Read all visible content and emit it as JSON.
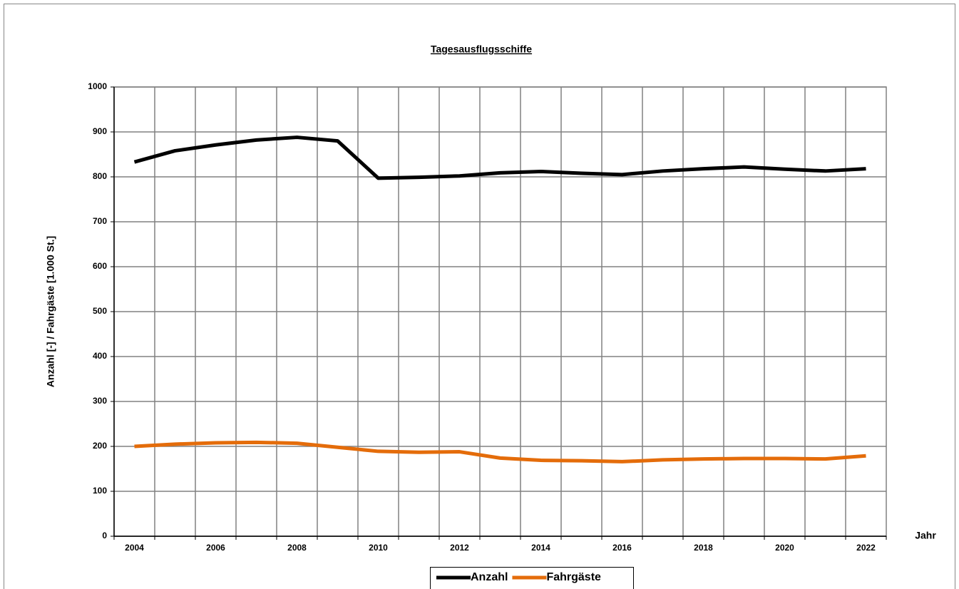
{
  "chart_data": {
    "type": "line",
    "title": "Tagesausflugsschiffe",
    "x_label": "Jahr",
    "y_label": "Anzahl [-] / Fahrgäste [1.000 St.]",
    "categories": [
      "2004",
      null,
      "2006",
      null,
      "2008",
      null,
      "2010",
      null,
      "2012",
      null,
      "2014",
      null,
      "2016",
      null,
      "2018",
      null,
      "2020",
      null,
      "2022"
    ],
    "series": [
      {
        "name": "Anzahl",
        "color": "#000000",
        "values": [
          833,
          858,
          871,
          882,
          888,
          880,
          797,
          799,
          802,
          809,
          812,
          808,
          805,
          813,
          818,
          822,
          817,
          813,
          818
        ]
      },
      {
        "name": "Fahrgäste",
        "color": "#e46c0a",
        "values": [
          200,
          205,
          208,
          209,
          207,
          198,
          189,
          187,
          188,
          174,
          169,
          168,
          166,
          170,
          172,
          173,
          173,
          172,
          179
        ]
      }
    ],
    "ylim": [
      0,
      1000
    ],
    "yticks": [
      0,
      100,
      200,
      300,
      400,
      500,
      600,
      700,
      800,
      900,
      1000
    ],
    "grid": true,
    "legend": "bottom"
  }
}
